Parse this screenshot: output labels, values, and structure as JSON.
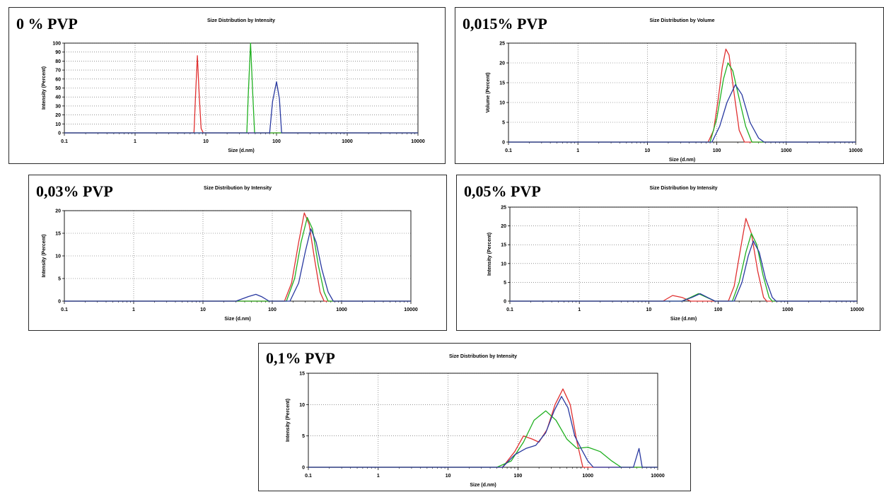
{
  "chart_data": [
    {
      "type": "line",
      "panel_label": "0 % PVP",
      "title": "Size Distribution by Intensity",
      "xlabel": "Size (d.nm)",
      "ylabel": "Intensity (Percent)",
      "xscale": "log",
      "xlim": [
        0.1,
        10000
      ],
      "ylim": [
        0,
        100
      ],
      "xticks": [
        "0.1",
        "1",
        "10",
        "100",
        "1000",
        "10000"
      ],
      "yticks": [
        "0",
        "10",
        "20",
        "30",
        "40",
        "50",
        "60",
        "70",
        "80",
        "90",
        "100"
      ],
      "grid": true,
      "series": [
        {
          "color": "#e03030",
          "points": [
            [
              0.1,
              0
            ],
            [
              6.8,
              0
            ],
            [
              7.2,
              45
            ],
            [
              7.6,
              86
            ],
            [
              8.1,
              40
            ],
            [
              8.6,
              5
            ],
            [
              9.2,
              0
            ],
            [
              10000,
              0
            ]
          ]
        },
        {
          "color": "#20b020",
          "points": [
            [
              0.1,
              0
            ],
            [
              38,
              0
            ],
            [
              40,
              45
            ],
            [
              43,
              100
            ],
            [
              46,
              45
            ],
            [
              49,
              0
            ],
            [
              10000,
              0
            ]
          ]
        },
        {
          "color": "#2838a0",
          "points": [
            [
              0.1,
              0
            ],
            [
              80,
              0
            ],
            [
              88,
              35
            ],
            [
              100,
              57
            ],
            [
              110,
              38
            ],
            [
              118,
              0
            ],
            [
              10000,
              0
            ]
          ]
        }
      ]
    },
    {
      "type": "line",
      "panel_label": "0,015% PVP",
      "title": "Size Distribution by Volume",
      "xlabel": "Size (d.nm)",
      "ylabel": "Volume (Percent)",
      "xscale": "log",
      "xlim": [
        0.1,
        10000
      ],
      "ylim": [
        0,
        25
      ],
      "xticks": [
        "0.1",
        "1",
        "10",
        "100",
        "1000",
        "10000"
      ],
      "yticks": [
        "0",
        "5",
        "10",
        "15",
        "20",
        "25"
      ],
      "grid": true,
      "series": [
        {
          "color": "#e03030",
          "points": [
            [
              0.1,
              0
            ],
            [
              75,
              0
            ],
            [
              90,
              3
            ],
            [
              105,
              11
            ],
            [
              120,
              19
            ],
            [
              135,
              23.5
            ],
            [
              150,
              22
            ],
            [
              175,
              13
            ],
            [
              210,
              3
            ],
            [
              250,
              0
            ],
            [
              10000,
              0
            ]
          ]
        },
        {
          "color": "#20b020",
          "points": [
            [
              0.1,
              0
            ],
            [
              80,
              0
            ],
            [
              100,
              6
            ],
            [
              125,
              16
            ],
            [
              145,
              20
            ],
            [
              170,
              18
            ],
            [
              210,
              11
            ],
            [
              260,
              4
            ],
            [
              320,
              0
            ],
            [
              10000,
              0
            ]
          ]
        },
        {
          "color": "#2838a0",
          "points": [
            [
              0.1,
              0
            ],
            [
              85,
              0
            ],
            [
              110,
              4
            ],
            [
              140,
              10
            ],
            [
              185,
              14.5
            ],
            [
              230,
              12
            ],
            [
              300,
              5
            ],
            [
              400,
              1
            ],
            [
              480,
              0
            ],
            [
              10000,
              0
            ]
          ]
        }
      ]
    },
    {
      "type": "line",
      "panel_label": "0,03% PVP",
      "title": "Size Distribution by Intensity",
      "xlabel": "Size (d.nm)",
      "ylabel": "Intensity (Percent)",
      "xscale": "log",
      "xlim": [
        0.1,
        10000
      ],
      "ylim": [
        0,
        20
      ],
      "xticks": [
        "0.1",
        "1",
        "10",
        "100",
        "1000",
        "10000"
      ],
      "yticks": [
        "0",
        "5",
        "10",
        "15",
        "20"
      ],
      "grid": true,
      "series": [
        {
          "color": "#e03030",
          "points": [
            [
              0.1,
              0
            ],
            [
              150,
              0
            ],
            [
              190,
              4
            ],
            [
              240,
              13
            ],
            [
              290,
              19.5
            ],
            [
              340,
              17
            ],
            [
              410,
              9
            ],
            [
              490,
              2
            ],
            [
              560,
              0
            ],
            [
              10000,
              0
            ]
          ]
        },
        {
          "color": "#20b020",
          "points": [
            [
              0.1,
              0
            ],
            [
              160,
              0
            ],
            [
              210,
              5
            ],
            [
              260,
              13
            ],
            [
              320,
              18.5
            ],
            [
              380,
              16
            ],
            [
              460,
              8
            ],
            [
              560,
              2
            ],
            [
              640,
              0
            ],
            [
              10000,
              0
            ]
          ]
        },
        {
          "color": "#2838a0",
          "points": [
            [
              0.1,
              0
            ],
            [
              30,
              0
            ],
            [
              45,
              1
            ],
            [
              58,
              1.5
            ],
            [
              70,
              1
            ],
            [
              90,
              0
            ],
            [
              180,
              0
            ],
            [
              240,
              4
            ],
            [
              300,
              11
            ],
            [
              360,
              16
            ],
            [
              430,
              13
            ],
            [
              520,
              7
            ],
            [
              640,
              2
            ],
            [
              760,
              0
            ],
            [
              10000,
              0
            ]
          ]
        }
      ]
    },
    {
      "type": "line",
      "panel_label": "0,05% PVP",
      "title": "Size Distribution by Intensity",
      "xlabel": "Size (d.nm)",
      "ylabel": "Intensity (Percent)",
      "xscale": "log",
      "xlim": [
        0.1,
        10000
      ],
      "ylim": [
        0,
        25
      ],
      "xticks": [
        "0.1",
        "1",
        "10",
        "100",
        "1000",
        "10000"
      ],
      "yticks": [
        "0",
        "5",
        "10",
        "15",
        "20",
        "25"
      ],
      "grid": true,
      "series": [
        {
          "color": "#e03030",
          "points": [
            [
              0.1,
              0
            ],
            [
              16,
              0
            ],
            [
              22,
              1.5
            ],
            [
              30,
              1
            ],
            [
              40,
              0
            ],
            [
              140,
              0
            ],
            [
              170,
              4
            ],
            [
              210,
              14
            ],
            [
              250,
              22
            ],
            [
              300,
              18
            ],
            [
              370,
              8
            ],
            [
              450,
              1
            ],
            [
              500,
              0
            ],
            [
              10000,
              0
            ]
          ]
        },
        {
          "color": "#20b020",
          "points": [
            [
              0.1,
              0
            ],
            [
              30,
              0
            ],
            [
              40,
              1
            ],
            [
              52,
              2
            ],
            [
              68,
              1
            ],
            [
              90,
              0
            ],
            [
              160,
              0
            ],
            [
              200,
              5
            ],
            [
              250,
              13
            ],
            [
              300,
              18
            ],
            [
              360,
              15
            ],
            [
              440,
              7
            ],
            [
              540,
              1
            ],
            [
              600,
              0
            ],
            [
              10000,
              0
            ]
          ]
        },
        {
          "color": "#2838a0",
          "points": [
            [
              0.1,
              0
            ],
            [
              30,
              0
            ],
            [
              42,
              1
            ],
            [
              55,
              2
            ],
            [
              70,
              1
            ],
            [
              90,
              0
            ],
            [
              170,
              0
            ],
            [
              220,
              5
            ],
            [
              270,
              12
            ],
            [
              320,
              16
            ],
            [
              390,
              13
            ],
            [
              480,
              6
            ],
            [
              600,
              1
            ],
            [
              680,
              0
            ],
            [
              10000,
              0
            ]
          ]
        }
      ]
    },
    {
      "type": "line",
      "panel_label": "0,1% PVP",
      "title": "Size Distribution by Intensity",
      "xlabel": "Size (d.nm)",
      "ylabel": "Intensity (Percent)",
      "xscale": "log",
      "xlim": [
        0.1,
        10000
      ],
      "ylim": [
        0,
        15
      ],
      "xticks": [
        "0.1",
        "1",
        "10",
        "100",
        "1000",
        "10000"
      ],
      "yticks": [
        "0",
        "5",
        "10",
        "15"
      ],
      "grid": true,
      "series": [
        {
          "color": "#e03030",
          "points": [
            [
              0.1,
              0
            ],
            [
              60,
              0
            ],
            [
              90,
              2.5
            ],
            [
              120,
              5
            ],
            [
              160,
              4.5
            ],
            [
              200,
              4
            ],
            [
              260,
              6
            ],
            [
              340,
              10
            ],
            [
              440,
              12.5
            ],
            [
              560,
              10
            ],
            [
              700,
              4
            ],
            [
              850,
              0
            ],
            [
              10000,
              0
            ]
          ]
        },
        {
          "color": "#20b020",
          "points": [
            [
              0.1,
              0
            ],
            [
              50,
              0
            ],
            [
              80,
              1
            ],
            [
              120,
              4
            ],
            [
              170,
              7.5
            ],
            [
              250,
              9
            ],
            [
              350,
              7.5
            ],
            [
              500,
              4.5
            ],
            [
              700,
              3
            ],
            [
              1000,
              3.2
            ],
            [
              1500,
              2.5
            ],
            [
              2200,
              1
            ],
            [
              3000,
              0
            ],
            [
              10000,
              0
            ]
          ]
        },
        {
          "color": "#2838a0",
          "points": [
            [
              0.1,
              0
            ],
            [
              60,
              0
            ],
            [
              90,
              2
            ],
            [
              130,
              3
            ],
            [
              180,
              3.5
            ],
            [
              250,
              5.5
            ],
            [
              330,
              9
            ],
            [
              420,
              11.3
            ],
            [
              520,
              9.5
            ],
            [
              650,
              5
            ],
            [
              800,
              3
            ],
            [
              1000,
              1
            ],
            [
              1200,
              0
            ],
            [
              4500,
              0
            ],
            [
              5400,
              3
            ],
            [
              6000,
              0
            ],
            [
              10000,
              0
            ]
          ]
        }
      ]
    }
  ]
}
